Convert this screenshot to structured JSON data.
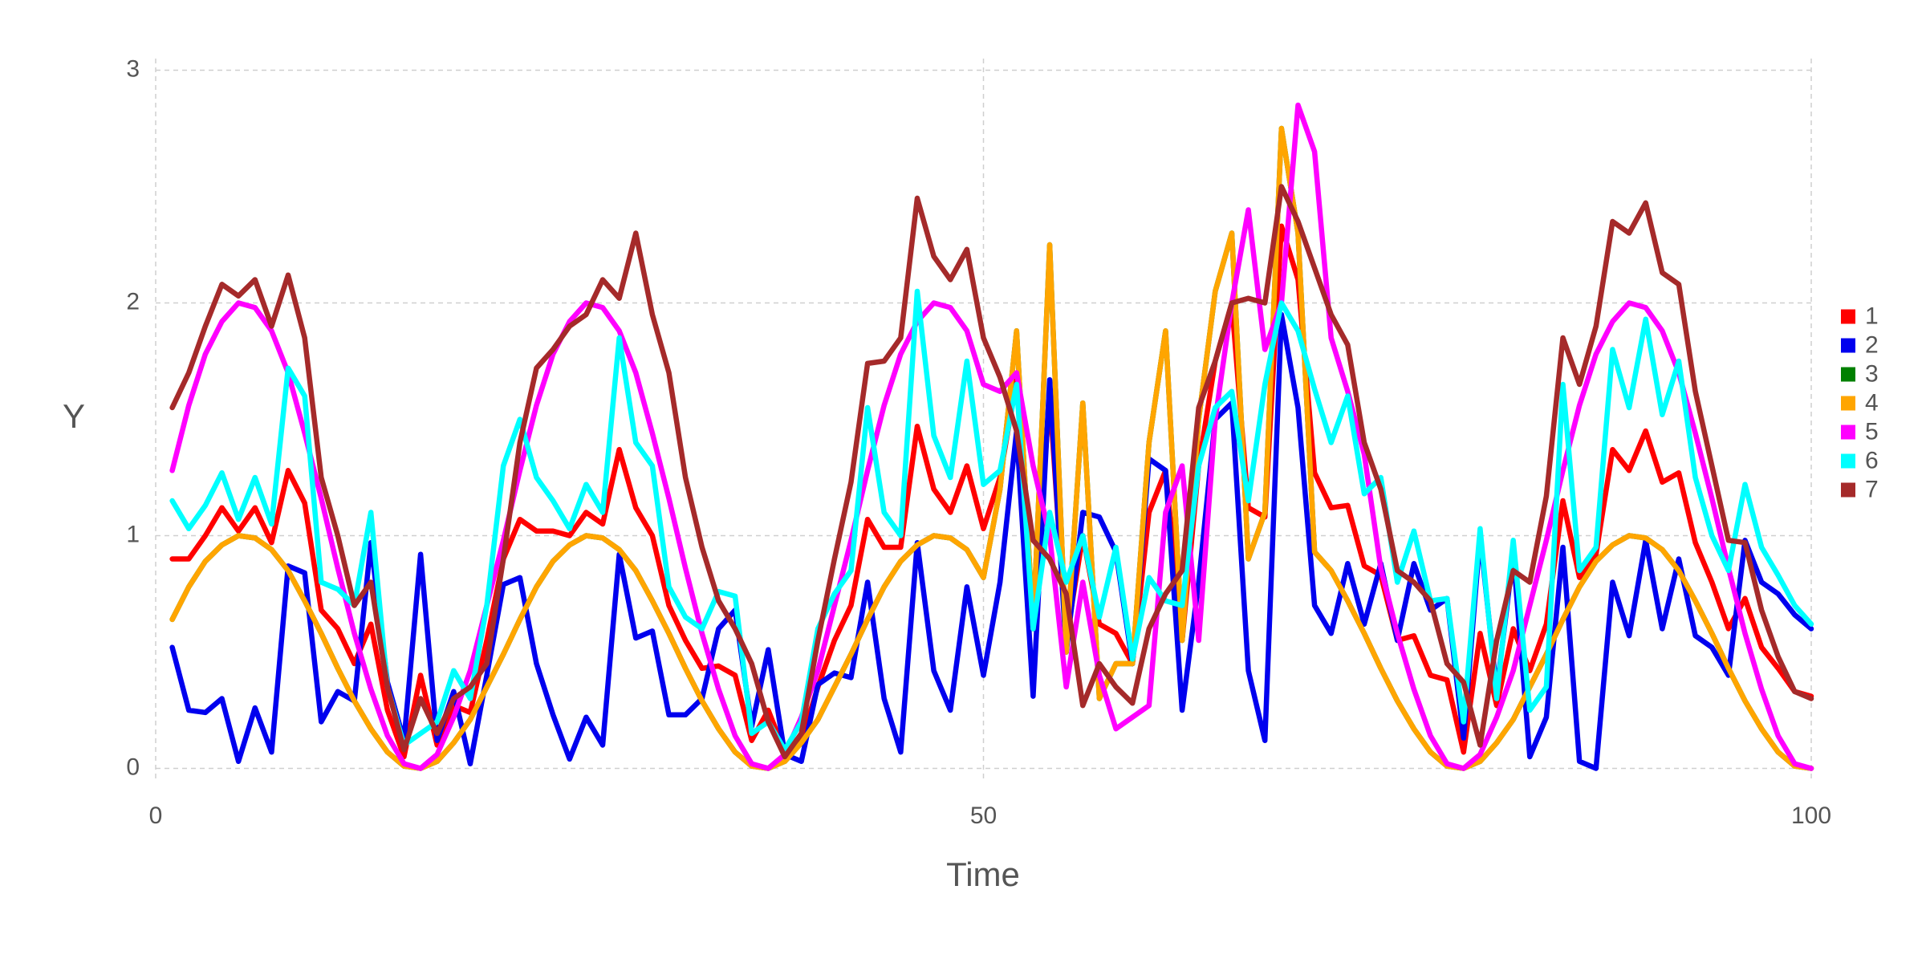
{
  "chart_data": {
    "type": "line",
    "xlabel": "Time",
    "ylabel": "Y",
    "x": [
      1,
      2,
      3,
      4,
      5,
      6,
      7,
      8,
      9,
      10,
      11,
      12,
      13,
      14,
      15,
      16,
      17,
      18,
      19,
      20,
      21,
      22,
      23,
      24,
      25,
      26,
      27,
      28,
      29,
      30,
      31,
      32,
      33,
      34,
      35,
      36,
      37,
      38,
      39,
      40,
      41,
      42,
      43,
      44,
      45,
      46,
      47,
      48,
      49,
      50,
      51,
      52,
      53,
      54,
      55,
      56,
      57,
      58,
      59,
      60,
      61,
      62,
      63,
      64,
      65,
      66,
      67,
      68,
      69,
      70,
      71,
      72,
      73,
      74,
      75,
      76,
      77,
      78,
      79,
      80,
      81,
      82,
      83,
      84,
      85,
      86,
      87,
      88,
      89,
      90,
      91,
      92,
      93,
      94,
      95,
      96,
      97,
      98,
      99,
      100
    ],
    "xlim": [
      0,
      100
    ],
    "xticks": [
      0,
      50,
      100
    ],
    "ylim": [
      -0.05,
      3.05
    ],
    "yticks": [
      0,
      1,
      2,
      3
    ],
    "grid": true,
    "legend": "right",
    "series": [
      {
        "name": "1",
        "color": "#ff0000",
        "values": [
          0.9,
          0.9,
          1.0,
          1.12,
          1.02,
          1.12,
          0.97,
          1.28,
          1.14,
          0.68,
          0.6,
          0.45,
          0.62,
          0.25,
          0.05,
          0.4,
          0.1,
          0.27,
          0.24,
          0.55,
          0.9,
          1.07,
          1.02,
          1.02,
          1.0,
          1.1,
          1.05,
          1.37,
          1.12,
          1.0,
          0.7,
          0.55,
          0.43,
          0.44,
          0.4,
          0.12,
          0.25,
          0.07,
          0.12,
          0.35,
          0.55,
          0.7,
          1.07,
          0.95,
          0.95,
          1.47,
          1.2,
          1.1,
          1.3,
          1.03,
          1.25,
          1.67,
          0.62,
          1.6,
          0.55,
          1.0,
          0.62,
          0.58,
          0.45,
          1.1,
          1.28,
          0.55,
          1.3,
          1.75,
          2.0,
          1.12,
          1.08,
          2.33,
          2.1,
          1.27,
          1.12,
          1.13,
          0.87,
          0.83,
          0.55,
          0.57,
          0.4,
          0.38,
          0.07,
          0.58,
          0.27,
          0.6,
          0.42,
          0.62,
          1.15,
          0.82,
          0.92,
          1.37,
          1.28,
          1.45,
          1.23,
          1.27,
          0.97,
          0.8,
          0.6,
          0.73,
          0.52,
          0.43,
          0.33,
          0.31
        ]
      },
      {
        "name": "2",
        "color": "#0000ee",
        "values": [
          0.52,
          0.25,
          0.24,
          0.3,
          0.03,
          0.26,
          0.07,
          0.87,
          0.84,
          0.2,
          0.33,
          0.29,
          0.97,
          0.37,
          0.12,
          0.92,
          0.12,
          0.33,
          0.02,
          0.4,
          0.79,
          0.82,
          0.45,
          0.23,
          0.04,
          0.22,
          0.1,
          0.92,
          0.56,
          0.59,
          0.23,
          0.23,
          0.3,
          0.6,
          0.68,
          0.18,
          0.51,
          0.06,
          0.03,
          0.36,
          0.41,
          0.39,
          0.8,
          0.3,
          0.07,
          0.97,
          0.42,
          0.25,
          0.78,
          0.4,
          0.8,
          1.45,
          0.31,
          1.67,
          0.5,
          1.1,
          1.08,
          0.93,
          0.45,
          1.33,
          1.28,
          0.25,
          0.8,
          1.5,
          1.57,
          0.42,
          0.12,
          1.95,
          1.55,
          0.7,
          0.58,
          0.88,
          0.62,
          0.88,
          0.55,
          0.88,
          0.68,
          0.73,
          0.13,
          1.0,
          0.33,
          0.92,
          0.05,
          0.22,
          0.95,
          0.03,
          0.0,
          0.8,
          0.57,
          0.98,
          0.6,
          0.9,
          0.57,
          0.52,
          0.4,
          0.98,
          0.8,
          0.75,
          0.66,
          0.6
        ]
      },
      {
        "name": "3",
        "color": "#008000",
        "values": [
          0.64,
          0.78,
          0.89,
          0.96,
          1.0,
          0.99,
          0.94,
          0.85,
          0.72,
          0.58,
          0.43,
          0.29,
          0.17,
          0.07,
          0.01,
          0.0,
          0.03,
          0.11,
          0.21,
          0.35,
          0.49,
          0.64,
          0.78,
          0.89,
          0.96,
          1.0,
          0.99,
          0.94,
          0.85,
          0.72,
          0.58,
          0.43,
          0.29,
          0.17,
          0.07,
          0.01,
          0.0,
          0.03,
          0.11,
          0.21,
          0.35,
          0.49,
          0.64,
          0.78,
          0.89,
          0.96,
          1.0,
          0.99,
          0.94,
          0.82,
          1.2,
          1.88,
          0.6,
          2.25,
          0.5,
          1.57,
          0.3,
          0.45,
          0.45,
          1.4,
          1.88,
          0.55,
          1.5,
          2.05,
          2.3,
          0.9,
          1.1,
          2.75,
          2.3,
          0.93,
          0.85,
          0.72,
          0.58,
          0.43,
          0.29,
          0.17,
          0.07,
          0.01,
          0.0,
          0.03,
          0.11,
          0.21,
          0.35,
          0.49,
          0.64,
          0.78,
          0.89,
          0.96,
          1.0,
          0.99,
          0.94,
          0.85,
          0.72,
          0.58,
          0.43,
          0.29,
          0.17,
          0.07,
          0.01,
          0.0
        ]
      },
      {
        "name": "4",
        "color": "#ffa500",
        "values": [
          0.64,
          0.78,
          0.89,
          0.96,
          1.0,
          0.99,
          0.94,
          0.85,
          0.72,
          0.58,
          0.43,
          0.29,
          0.17,
          0.07,
          0.01,
          0.0,
          0.03,
          0.11,
          0.21,
          0.35,
          0.49,
          0.64,
          0.78,
          0.89,
          0.96,
          1.0,
          0.99,
          0.94,
          0.85,
          0.72,
          0.58,
          0.43,
          0.29,
          0.17,
          0.07,
          0.01,
          0.0,
          0.03,
          0.11,
          0.21,
          0.35,
          0.49,
          0.64,
          0.78,
          0.89,
          0.96,
          1.0,
          0.99,
          0.94,
          0.82,
          1.2,
          1.88,
          0.6,
          2.25,
          0.5,
          1.57,
          0.3,
          0.45,
          0.45,
          1.4,
          1.88,
          0.55,
          1.5,
          2.05,
          2.3,
          0.9,
          1.1,
          2.75,
          2.3,
          0.93,
          0.85,
          0.72,
          0.58,
          0.43,
          0.29,
          0.17,
          0.07,
          0.01,
          0.0,
          0.03,
          0.11,
          0.21,
          0.35,
          0.49,
          0.64,
          0.78,
          0.89,
          0.96,
          1.0,
          0.99,
          0.94,
          0.85,
          0.72,
          0.58,
          0.43,
          0.29,
          0.17,
          0.07,
          0.01,
          0.0
        ]
      },
      {
        "name": "5",
        "color": "#ff00ff",
        "values": [
          1.28,
          1.56,
          1.78,
          1.92,
          2.0,
          1.98,
          1.88,
          1.7,
          1.44,
          1.16,
          0.86,
          0.58,
          0.34,
          0.14,
          0.02,
          0.0,
          0.06,
          0.22,
          0.42,
          0.7,
          0.98,
          1.28,
          1.56,
          1.78,
          1.92,
          2.0,
          1.98,
          1.88,
          1.7,
          1.44,
          1.16,
          0.86,
          0.58,
          0.34,
          0.14,
          0.02,
          0.0,
          0.06,
          0.22,
          0.42,
          0.7,
          0.98,
          1.28,
          1.56,
          1.78,
          1.92,
          2.0,
          1.98,
          1.88,
          1.65,
          1.62,
          1.7,
          1.3,
          1.0,
          0.35,
          0.8,
          0.4,
          0.17,
          0.22,
          0.27,
          1.1,
          1.3,
          0.55,
          1.5,
          2.0,
          2.4,
          1.8,
          2.0,
          2.85,
          2.65,
          1.85,
          1.62,
          1.35,
          0.86,
          0.58,
          0.34,
          0.14,
          0.02,
          0.0,
          0.06,
          0.22,
          0.42,
          0.7,
          0.98,
          1.28,
          1.56,
          1.78,
          1.92,
          2.0,
          1.98,
          1.88,
          1.7,
          1.44,
          1.16,
          0.86,
          0.58,
          0.34,
          0.14,
          0.02,
          0.0
        ]
      },
      {
        "name": "6",
        "color": "#00ffff",
        "values": [
          1.15,
          1.03,
          1.13,
          1.27,
          1.07,
          1.25,
          1.05,
          1.72,
          1.6,
          0.8,
          0.77,
          0.7,
          1.1,
          0.35,
          0.1,
          0.15,
          0.2,
          0.42,
          0.3,
          0.7,
          1.3,
          1.5,
          1.25,
          1.15,
          1.03,
          1.22,
          1.1,
          1.85,
          1.4,
          1.3,
          0.78,
          0.65,
          0.6,
          0.76,
          0.74,
          0.15,
          0.2,
          0.08,
          0.2,
          0.6,
          0.75,
          0.85,
          1.55,
          1.1,
          1.0,
          2.05,
          1.43,
          1.25,
          1.75,
          1.22,
          1.28,
          1.65,
          0.6,
          1.1,
          0.8,
          1.0,
          0.65,
          0.95,
          0.47,
          0.82,
          0.72,
          0.7,
          1.3,
          1.55,
          1.62,
          1.15,
          1.65,
          2.0,
          1.88,
          1.63,
          1.4,
          1.6,
          1.18,
          1.25,
          0.8,
          1.02,
          0.72,
          0.73,
          0.2,
          1.03,
          0.3,
          0.98,
          0.25,
          0.35,
          1.65,
          0.85,
          0.95,
          1.8,
          1.55,
          1.93,
          1.52,
          1.75,
          1.25,
          1.0,
          0.85,
          1.22,
          0.95,
          0.83,
          0.7,
          0.62
        ]
      },
      {
        "name": "7",
        "color": "#a52a2a",
        "values": [
          1.55,
          1.7,
          1.9,
          2.08,
          2.03,
          2.1,
          1.9,
          2.12,
          1.85,
          1.25,
          1.0,
          0.7,
          0.8,
          0.35,
          0.08,
          0.3,
          0.15,
          0.3,
          0.35,
          0.45,
          0.9,
          1.4,
          1.72,
          1.8,
          1.9,
          1.95,
          2.1,
          2.02,
          2.3,
          1.95,
          1.7,
          1.25,
          0.95,
          0.72,
          0.6,
          0.45,
          0.2,
          0.05,
          0.15,
          0.55,
          0.9,
          1.23,
          1.74,
          1.75,
          1.85,
          2.45,
          2.2,
          2.1,
          2.23,
          1.85,
          1.68,
          1.45,
          0.98,
          0.9,
          0.75,
          0.27,
          0.45,
          0.35,
          0.28,
          0.6,
          0.75,
          0.85,
          1.55,
          1.75,
          2.0,
          2.02,
          2.0,
          2.5,
          2.35,
          2.15,
          1.95,
          1.82,
          1.4,
          1.2,
          0.85,
          0.8,
          0.72,
          0.45,
          0.37,
          0.1,
          0.55,
          0.85,
          0.8,
          1.17,
          1.85,
          1.65,
          1.9,
          2.35,
          2.3,
          2.43,
          2.13,
          2.08,
          1.62,
          1.3,
          0.98,
          0.97,
          0.68,
          0.48,
          0.33,
          0.3
        ]
      }
    ]
  }
}
